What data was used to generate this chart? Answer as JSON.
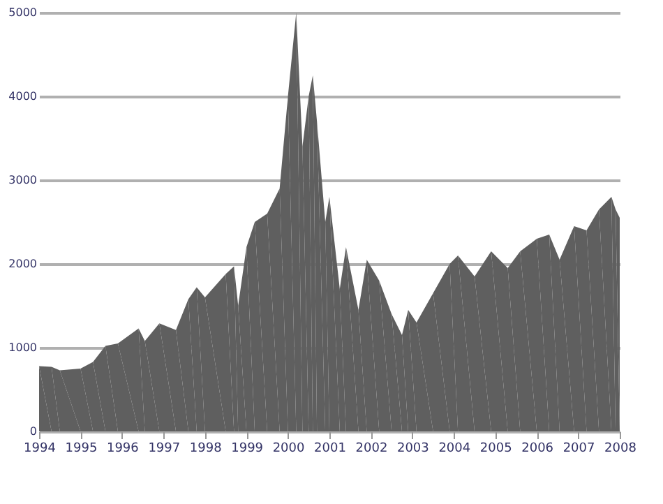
{
  "chart_data": {
    "type": "area",
    "x": [
      1994.0,
      1994.3,
      1994.5,
      1995.0,
      1995.3,
      1995.6,
      1995.9,
      1996.4,
      1996.55,
      1996.9,
      1997.3,
      1997.6,
      1997.8,
      1998.0,
      1998.5,
      1998.7,
      1998.8,
      1999.0,
      1999.2,
      1999.5,
      1999.8,
      2000.0,
      2000.2,
      2000.35,
      2000.5,
      2000.6,
      2000.7,
      2000.9,
      2001.0,
      2001.25,
      2001.4,
      2001.7,
      2001.9,
      2002.2,
      2002.5,
      2002.75,
      2002.9,
      2003.1,
      2003.5,
      2003.9,
      2004.1,
      2004.5,
      2004.9,
      2005.3,
      2005.6,
      2006.0,
      2006.3,
      2006.55,
      2006.9,
      2007.2,
      2007.5,
      2007.8,
      2007.9,
      2008.0
    ],
    "series": [
      {
        "color": "#5f5f5f",
        "values": [
          780,
          770,
          730,
          750,
          830,
          1020,
          1050,
          1230,
          1080,
          1290,
          1210,
          1580,
          1720,
          1600,
          1880,
          1970,
          1500,
          2200,
          2500,
          2600,
          2900,
          4000,
          5000,
          3400,
          4000,
          4250,
          3700,
          2500,
          2800,
          1700,
          2200,
          1450,
          2050,
          1800,
          1400,
          1150,
          1450,
          1300,
          1650,
          2000,
          2100,
          1850,
          2150,
          1950,
          2150,
          2300,
          2350,
          2050,
          2450,
          2400,
          2650,
          2800,
          2650,
          2550
        ]
      }
    ],
    "xlim": [
      1994,
      2008
    ],
    "xticks": [
      1994,
      1995,
      1996,
      1997,
      1998,
      1999,
      2000,
      2001,
      2002,
      2003,
      2004,
      2005,
      2006,
      2007,
      2008
    ],
    "ylim": [
      0,
      5000
    ],
    "yticks": [
      0,
      1000,
      2000,
      3000,
      4000,
      5000
    ],
    "grid": "y"
  }
}
